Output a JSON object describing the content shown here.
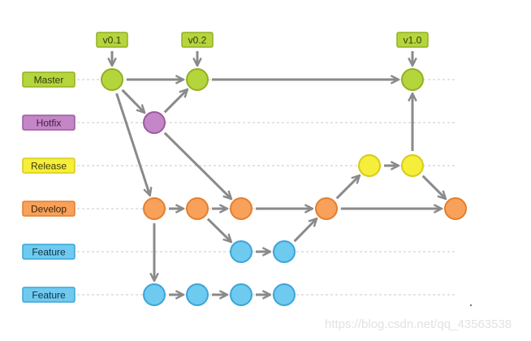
{
  "branches": [
    {
      "id": "master",
      "label": "Master",
      "fill": "#b5d53c",
      "stroke": "#93b022",
      "text": "#2f3a10"
    },
    {
      "id": "hotfix",
      "label": "Hotfix",
      "fill": "#c486c6",
      "stroke": "#9c5aa0",
      "text": "#3c1f3e"
    },
    {
      "id": "release",
      "label": "Release",
      "fill": "#f5ee3a",
      "stroke": "#d6cc16",
      "text": "#3b3808"
    },
    {
      "id": "develop",
      "label": "Develop",
      "fill": "#f7a15a",
      "stroke": "#e47f2e",
      "text": "#3e2208"
    },
    {
      "id": "feature1",
      "label": "Feature",
      "fill": "#6fcaf0",
      "stroke": "#3ca5d6",
      "text": "#0f3040"
    },
    {
      "id": "feature2",
      "label": "Feature",
      "fill": "#6fcaf0",
      "stroke": "#3ca5d6",
      "text": "#0f3040"
    }
  ],
  "tags": [
    {
      "label": "v0.1",
      "target": "m1"
    },
    {
      "label": "v0.2",
      "target": "m2"
    },
    {
      "label": "v1.0",
      "target": "m3"
    }
  ],
  "commits": [
    {
      "id": "m1",
      "branch": "master"
    },
    {
      "id": "m2",
      "branch": "master"
    },
    {
      "id": "m3",
      "branch": "master"
    },
    {
      "id": "h1",
      "branch": "hotfix"
    },
    {
      "id": "r1",
      "branch": "release"
    },
    {
      "id": "r2",
      "branch": "release"
    },
    {
      "id": "d1",
      "branch": "develop"
    },
    {
      "id": "d2",
      "branch": "develop"
    },
    {
      "id": "d3",
      "branch": "develop"
    },
    {
      "id": "d4",
      "branch": "develop"
    },
    {
      "id": "d5",
      "branch": "develop"
    },
    {
      "id": "fa1",
      "branch": "feature1"
    },
    {
      "id": "fa2",
      "branch": "feature1"
    },
    {
      "id": "fb1",
      "branch": "feature2"
    },
    {
      "id": "fb2",
      "branch": "feature2"
    },
    {
      "id": "fb3",
      "branch": "feature2"
    },
    {
      "id": "fb4",
      "branch": "feature2"
    }
  ],
  "edges": [
    [
      "m1",
      "m2"
    ],
    [
      "m2",
      "m3"
    ],
    [
      "m1",
      "h1"
    ],
    [
      "h1",
      "m2"
    ],
    [
      "m1",
      "d1"
    ],
    [
      "h1",
      "d3"
    ],
    [
      "d1",
      "d2"
    ],
    [
      "d2",
      "d3"
    ],
    [
      "d3",
      "d4"
    ],
    [
      "d4",
      "r1"
    ],
    [
      "r1",
      "r2"
    ],
    [
      "r2",
      "m3"
    ],
    [
      "r2",
      "d5"
    ],
    [
      "d4",
      "d5"
    ],
    [
      "d2",
      "fa1"
    ],
    [
      "fa1",
      "fa2"
    ],
    [
      "fa2",
      "d4"
    ],
    [
      "d1",
      "fb1"
    ],
    [
      "fb1",
      "fb2"
    ],
    [
      "fb2",
      "fb3"
    ],
    [
      "fb3",
      "fb4"
    ]
  ],
  "edge_color": "#8a8a8a",
  "watermark": "https://blog.csdn.net/qq_43563538"
}
